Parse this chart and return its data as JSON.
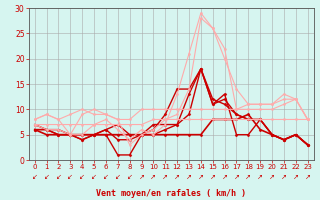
{
  "title": "",
  "xlabel": "Vent moyen/en rafales ( km/h )",
  "xlabel_color": "#cc0000",
  "background_color": "#d6f5f0",
  "grid_color": "#aaaaaa",
  "axis_color": "#555555",
  "tick_color": "#cc0000",
  "xlim": [
    -0.5,
    23.5
  ],
  "ylim": [
    0,
    30
  ],
  "yticks": [
    0,
    5,
    10,
    15,
    20,
    25,
    30
  ],
  "xticks": [
    0,
    1,
    2,
    3,
    4,
    5,
    6,
    7,
    8,
    9,
    10,
    11,
    12,
    13,
    14,
    15,
    16,
    17,
    18,
    19,
    20,
    21,
    22,
    23
  ],
  "series": [
    {
      "x": [
        0,
        1,
        2,
        3,
        4,
        5,
        6,
        7,
        8,
        9,
        10,
        11,
        12,
        13,
        14,
        15,
        16,
        17,
        18,
        19,
        20,
        21,
        22,
        23
      ],
      "y": [
        7,
        6,
        5,
        5,
        4,
        5,
        6,
        4,
        4,
        5,
        5,
        6,
        7,
        13,
        18,
        11,
        13,
        5,
        5,
        8,
        5,
        4,
        5,
        3
      ],
      "color": "#cc0000",
      "lw": 1.0,
      "marker": "D",
      "ms": 1.5
    },
    {
      "x": [
        0,
        1,
        2,
        3,
        4,
        5,
        6,
        7,
        8,
        9,
        10,
        11,
        12,
        13,
        14,
        15,
        16,
        17,
        18,
        19,
        20,
        21,
        22,
        23
      ],
      "y": [
        6,
        6,
        5,
        5,
        4,
        5,
        5,
        1,
        1,
        5,
        6,
        9,
        14,
        14,
        18,
        11,
        12,
        9,
        8,
        8,
        5,
        4,
        5,
        3
      ],
      "color": "#cc0000",
      "lw": 1.0,
      "marker": "D",
      "ms": 1.5
    },
    {
      "x": [
        0,
        1,
        2,
        3,
        4,
        5,
        6,
        7,
        8,
        9,
        10,
        11,
        12,
        13,
        14,
        15,
        16,
        17,
        18,
        19,
        20,
        21,
        22,
        23
      ],
      "y": [
        6,
        6,
        6,
        5,
        5,
        5,
        6,
        7,
        5,
        5,
        7,
        7,
        7,
        9,
        18,
        12,
        11,
        9,
        8,
        8,
        5,
        4,
        5,
        3
      ],
      "color": "#cc0000",
      "lw": 1.0,
      "marker": "D",
      "ms": 1.5
    },
    {
      "x": [
        0,
        1,
        2,
        3,
        4,
        5,
        6,
        7,
        8,
        9,
        10,
        11,
        12,
        13,
        14,
        15,
        16,
        17,
        18,
        19,
        20,
        21,
        22,
        23
      ],
      "y": [
        6,
        5,
        5,
        5,
        5,
        5,
        5,
        5,
        5,
        5,
        5,
        5,
        5,
        5,
        5,
        8,
        8,
        8,
        9,
        6,
        5,
        4,
        5,
        3
      ],
      "color": "#cc0000",
      "lw": 1.2,
      "marker": "D",
      "ms": 1.5
    },
    {
      "x": [
        0,
        1,
        2,
        3,
        4,
        5,
        6,
        7,
        8,
        9,
        10,
        11,
        12,
        13,
        14,
        15,
        16,
        17,
        18,
        19,
        20,
        21,
        22,
        23
      ],
      "y": [
        8,
        9,
        8,
        5,
        9,
        10,
        9,
        8,
        8,
        10,
        10,
        10,
        10,
        10,
        10,
        10,
        10,
        10,
        10,
        10,
        10,
        11,
        12,
        8
      ],
      "color": "#ffaaaa",
      "lw": 0.8,
      "marker": "o",
      "ms": 1.5
    },
    {
      "x": [
        0,
        1,
        2,
        3,
        4,
        5,
        6,
        7,
        8,
        9,
        10,
        11,
        12,
        13,
        14,
        15,
        16,
        17,
        18,
        19,
        20,
        21,
        22,
        23
      ],
      "y": [
        7,
        6,
        6,
        5,
        5,
        7,
        8,
        6,
        4,
        6,
        5,
        7,
        13,
        21,
        29,
        26,
        20,
        14,
        11,
        11,
        11,
        13,
        12,
        8
      ],
      "color": "#ffaaaa",
      "lw": 0.8,
      "marker": "o",
      "ms": 1.5
    },
    {
      "x": [
        0,
        1,
        2,
        3,
        4,
        5,
        6,
        7,
        8,
        9,
        10,
        11,
        12,
        13,
        14,
        15,
        16,
        17,
        18,
        19,
        20,
        21,
        22,
        23
      ],
      "y": [
        8,
        9,
        8,
        9,
        10,
        9,
        9,
        8,
        3,
        5,
        6,
        8,
        9,
        14,
        28,
        26,
        22,
        10,
        11,
        11,
        11,
        12,
        12,
        8
      ],
      "color": "#ffaaaa",
      "lw": 0.8,
      "marker": "o",
      "ms": 1.5
    },
    {
      "x": [
        0,
        1,
        2,
        3,
        4,
        5,
        6,
        7,
        8,
        9,
        10,
        11,
        12,
        13,
        14,
        15,
        16,
        17,
        18,
        19,
        20,
        21,
        22,
        23
      ],
      "y": [
        7,
        7,
        7,
        7,
        7,
        7,
        7,
        7,
        7,
        7,
        8,
        8,
        8,
        8,
        8,
        8,
        8,
        8,
        8,
        8,
        8,
        8,
        8,
        8
      ],
      "color": "#ffaaaa",
      "lw": 0.8,
      "marker": "o",
      "ms": 1.5
    }
  ],
  "wind_arrows_sw": [
    0,
    1,
    2,
    3,
    4,
    5,
    6,
    7,
    8
  ],
  "wind_arrows_ne": [
    9,
    10,
    11,
    12,
    13,
    14,
    15,
    16,
    17,
    18,
    19,
    20,
    21,
    22,
    23
  ]
}
